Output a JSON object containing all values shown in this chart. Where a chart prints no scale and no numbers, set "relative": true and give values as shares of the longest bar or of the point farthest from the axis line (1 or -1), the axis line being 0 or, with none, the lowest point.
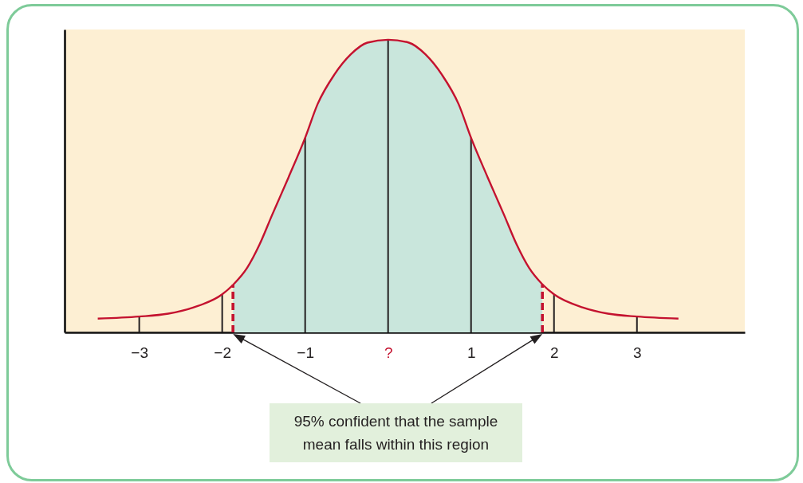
{
  "chart_data": {
    "type": "line",
    "relative": true,
    "xlim": [
      -3.9,
      4.3
    ],
    "xticks": [
      {
        "value": -3,
        "label": "−3"
      },
      {
        "value": -2,
        "label": "−2"
      },
      {
        "value": -1,
        "label": "−1"
      },
      {
        "value": 0,
        "label": "?"
      },
      1,
      2,
      3
    ],
    "series": [
      {
        "type": "area",
        "color": "#c9e6dc",
        "x": [
          -1.87,
          -1.7,
          -1.55,
          -1.4,
          -1.2,
          -1,
          -0.85,
          -0.65,
          -0.45,
          -0.25,
          0,
          0.25,
          0.45,
          0.65,
          0.85,
          1,
          1.2,
          1.4,
          1.55,
          1.7,
          1.86
        ],
        "values": [
          0.162,
          0.22,
          0.3,
          0.4,
          0.53,
          0.665,
          0.78,
          0.88,
          0.95,
          0.99,
          1,
          0.99,
          0.95,
          0.88,
          0.78,
          0.665,
          0.53,
          0.4,
          0.3,
          0.22,
          0.164
        ]
      },
      {
        "type": "bar",
        "color": "#231f20",
        "x": [
          -3,
          -2,
          -1,
          0,
          1,
          2,
          3
        ],
        "values": [
          0.054,
          0.13,
          0.665,
          1,
          0.665,
          0.13,
          0.054
        ]
      },
      {
        "type": "line",
        "color": "#c4122f",
        "line_style": "dashed",
        "x": [
          -1.87,
          -1.87
        ],
        "values": [
          0,
          0.162
        ]
      },
      {
        "type": "line",
        "color": "#c4122f",
        "line_style": "dashed",
        "x": [
          1.86,
          1.86
        ],
        "values": [
          0,
          0.164
        ]
      },
      {
        "color": "#c4122f",
        "x": [
          -3.5,
          -3,
          -2.65,
          -2.35,
          -2,
          -1.87,
          -1.7,
          -1.55,
          -1.4,
          -1.2,
          -1,
          -0.85,
          -0.65,
          -0.45,
          -0.25,
          0,
          0.25,
          0.45,
          0.65,
          0.85,
          1,
          1.2,
          1.4,
          1.55,
          1.7,
          1.86,
          2,
          2.35,
          2.65,
          3,
          3.5
        ],
        "values": [
          0.047,
          0.054,
          0.064,
          0.085,
          0.13,
          0.162,
          0.22,
          0.3,
          0.4,
          0.53,
          0.665,
          0.78,
          0.88,
          0.95,
          0.99,
          1,
          0.99,
          0.95,
          0.88,
          0.78,
          0.665,
          0.53,
          0.4,
          0.3,
          0.22,
          0.164,
          0.13,
          0.085,
          0.064,
          0.054,
          0.047
        ]
      }
    ],
    "annotations": [
      "95% confident that the sample mean falls within this region"
    ]
  }
}
